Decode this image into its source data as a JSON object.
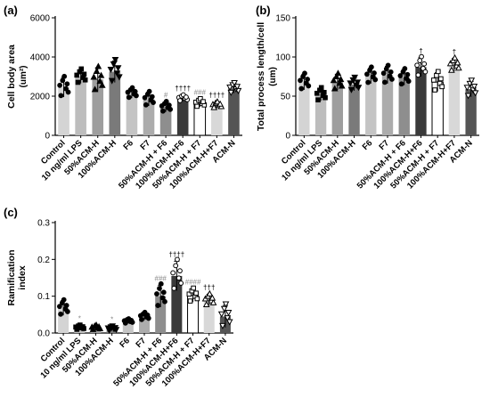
{
  "chart_data": [
    {
      "panel": "(a)",
      "type": "bar",
      "ylabel": "Cell body area",
      "yunit": "(um²)",
      "ylim": [
        0,
        6000
      ],
      "yticks": [
        "0",
        "2000",
        "4000",
        "6000"
      ],
      "categories": [
        "Control",
        "10 ng/ml LPS",
        "50%ACM-H",
        "100%ACM-H",
        "F6",
        "F7",
        "50%ACM-H + F6",
        "100%ACM-H+F6",
        "50%ACM-H + F7",
        "100%ACM-H+F7",
        "ACM-N"
      ],
      "values": [
        2450,
        3000,
        2850,
        3250,
        2150,
        1850,
        1450,
        1900,
        1650,
        1550,
        2400
      ],
      "errors": [
        500,
        350,
        600,
        550,
        250,
        350,
        250,
        150,
        200,
        150,
        250
      ],
      "bar_colors": [
        "#d4d4d4",
        "#bdbdbd",
        "#9e9e9e",
        "#7a7a7a",
        "#c4c4c4",
        "#acacac",
        "#8e8e8e",
        "#3a3a3a",
        "#ffffff",
        "#d8d8d8",
        "#555555"
      ],
      "annotations": [
        "",
        "",
        "",
        "",
        "",
        "",
        "#",
        "††††",
        "###",
        "††††",
        ""
      ]
    },
    {
      "panel": "(b)",
      "type": "bar",
      "ylabel": "Total process length/cell",
      "yunit": "(um)",
      "ylim": [
        0,
        150
      ],
      "yticks": [
        "0",
        "50",
        "100",
        "150"
      ],
      "categories": [
        "Control",
        "10 ng/ml LPS",
        "50%ACM-H",
        "100%ACM-H",
        "F6",
        "F7",
        "50%ACM-H + F6",
        "100%ACM-H+F6",
        "50%ACM-H + F7",
        "100%ACM-H+F7",
        "ACM-N"
      ],
      "values": [
        68,
        52,
        68,
        65,
        76,
        77,
        74,
        87,
        68,
        90,
        59
      ],
      "errors": [
        10,
        8,
        10,
        8,
        10,
        11,
        10,
        12,
        12,
        8,
        10
      ],
      "bar_colors": [
        "#d4d4d4",
        "#bdbdbd",
        "#9e9e9e",
        "#7a7a7a",
        "#c4c4c4",
        "#acacac",
        "#8e8e8e",
        "#3a3a3a",
        "#ffffff",
        "#d8d8d8",
        "#555555"
      ],
      "annotations": [
        "",
        "",
        "",
        "",
        "",
        "",
        "",
        "†",
        "",
        "†",
        ""
      ]
    },
    {
      "panel": "(c)",
      "type": "bar",
      "ylabel": "Ramification",
      "ylabel2": "index",
      "ylim": [
        0,
        0.3
      ],
      "yticks": [
        "0.0",
        "0.1",
        "0.2",
        "0.3"
      ],
      "categories": [
        "Control",
        "10 ng/ml LPS",
        "50%ACM-H",
        "100%ACM-H",
        "F6",
        "F7",
        "50%ACM-H + F6",
        "100%ACM-H+F6",
        "50%ACM-H + F7",
        "100%ACM-H+F7",
        "ACM-N"
      ],
      "values": [
        0.068,
        0.015,
        0.015,
        0.012,
        0.032,
        0.045,
        0.1,
        0.155,
        0.102,
        0.09,
        0.045
      ],
      "errors": [
        0.02,
        0.006,
        0.006,
        0.006,
        0.006,
        0.01,
        0.03,
        0.04,
        0.018,
        0.015,
        0.03
      ],
      "bar_colors": [
        "#d4d4d4",
        "#bdbdbd",
        "#9e9e9e",
        "#7a7a7a",
        "#c4c4c4",
        "#acacac",
        "#8e8e8e",
        "#3a3a3a",
        "#ffffff",
        "#d8d8d8",
        "#555555"
      ],
      "annotations": [
        "",
        "*",
        "",
        "*",
        "",
        "",
        "###",
        "††††",
        "####",
        "†††",
        ""
      ]
    }
  ]
}
